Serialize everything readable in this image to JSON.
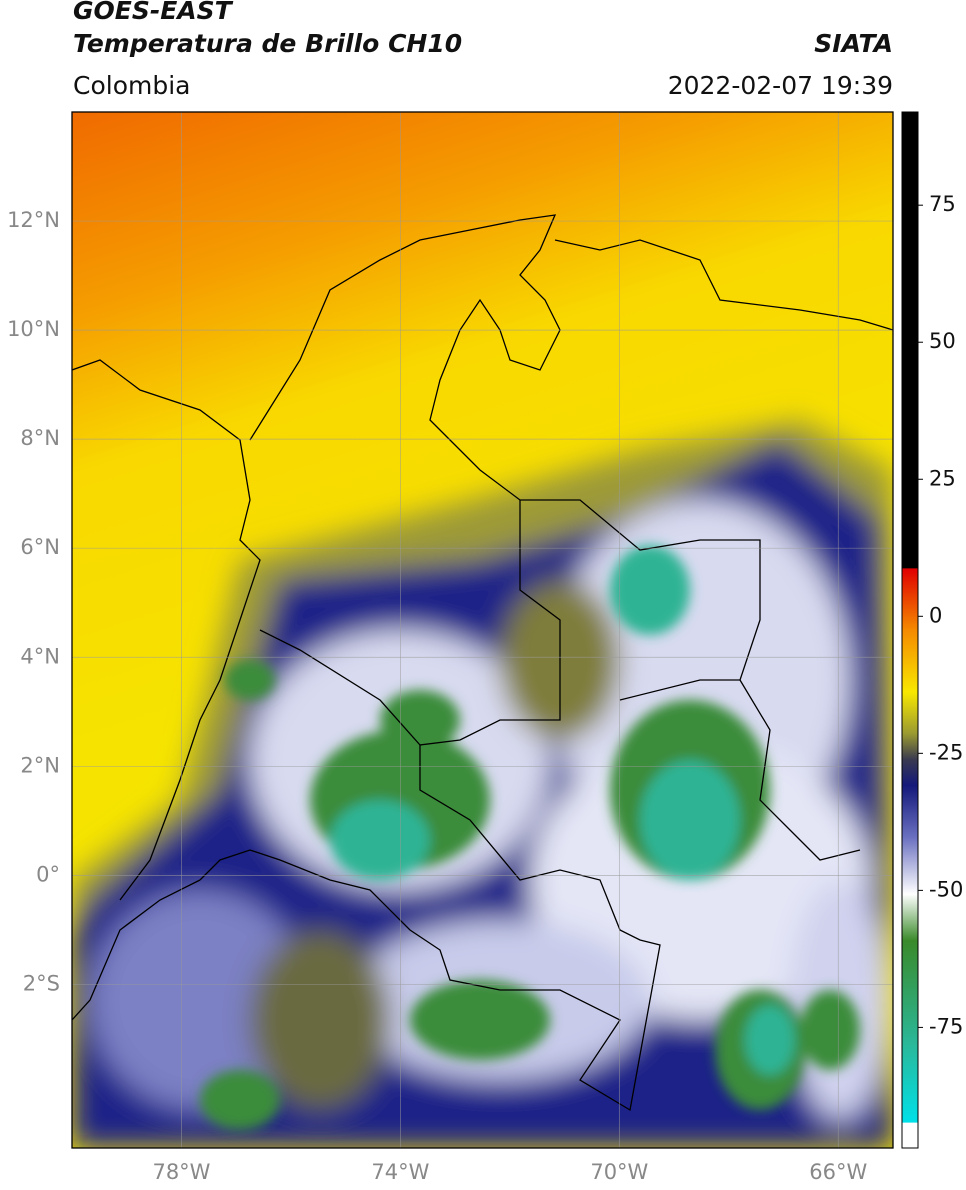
{
  "header": {
    "title": "GOES-EAST",
    "subtitle": "Temperatura de Brillo CH10",
    "source": "SIATA",
    "region": "Colombia",
    "timestamp": "2022-02-07 19:39"
  },
  "map": {
    "xlim": [
      -80,
      -65
    ],
    "ylim": [
      -5,
      14
    ],
    "grid": true,
    "xticks": [
      {
        "value": -78,
        "label": "78°W"
      },
      {
        "value": -74,
        "label": "74°W"
      },
      {
        "value": -70,
        "label": "70°W"
      },
      {
        "value": -66,
        "label": "66°W"
      }
    ],
    "yticks": [
      {
        "value": 12,
        "label": "12°N"
      },
      {
        "value": 10,
        "label": "10°N"
      },
      {
        "value": 8,
        "label": "8°N"
      },
      {
        "value": 6,
        "label": "6°N"
      },
      {
        "value": 4,
        "label": "4°N"
      },
      {
        "value": 2,
        "label": "2°N"
      },
      {
        "value": 0,
        "label": "0°"
      },
      {
        "value": -2,
        "label": "2°S"
      }
    ]
  },
  "colorbar": {
    "clim": [
      -97,
      92
    ],
    "ticks": [
      75,
      50,
      25,
      0,
      -25,
      -50,
      -75
    ]
  }
}
